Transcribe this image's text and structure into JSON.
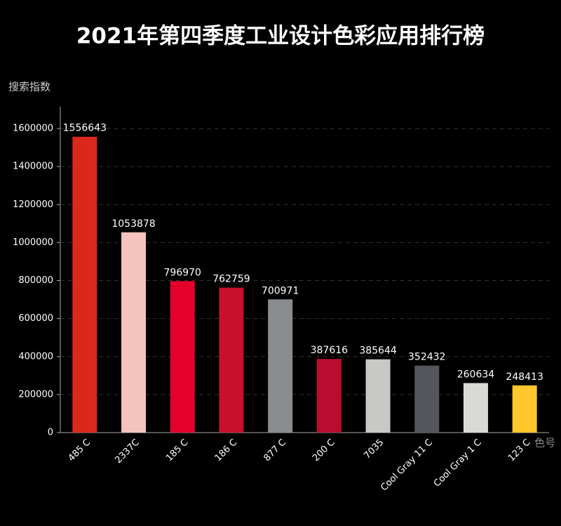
{
  "chart_data": {
    "type": "bar",
    "title": "2021年第四季度工业设计色彩应用排行榜",
    "y_label": "搜索指数",
    "x_label": "色号",
    "categories": [
      "485 C",
      "2337C",
      "185 C",
      "186 C",
      "877 C",
      "200 C",
      "7035",
      "Cool Gray 11 C",
      "Cool Gray 1 C",
      "123 C"
    ],
    "values": [
      1556643,
      1053878,
      796970,
      762759,
      700971,
      387616,
      385644,
      352432,
      260634,
      248413
    ],
    "colors": [
      "#da291c",
      "#f4c3bd",
      "#e4002b",
      "#c8102e",
      "#8a8d8f",
      "#ba0c2f",
      "#c8c9c5",
      "#53565a",
      "#d9d9d6",
      "#ffc72c"
    ],
    "ylim": [
      0,
      1700000
    ],
    "yticks": [
      0,
      200000,
      400000,
      600000,
      800000,
      1000000,
      1200000,
      1400000,
      1600000
    ],
    "grid": true
  }
}
